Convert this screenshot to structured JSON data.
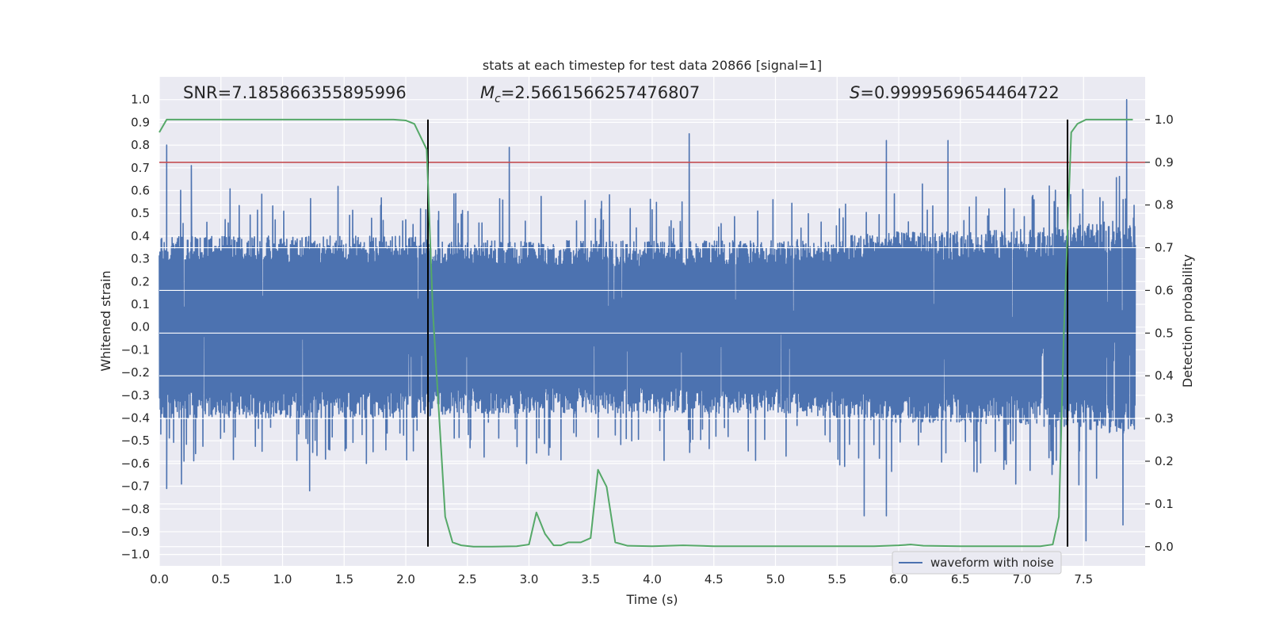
{
  "chart_data": {
    "type": "line",
    "title": "stats at each timestep for test data 20866 [signal=1]",
    "xlabel": "Time (s)",
    "ylabel": "Whitened strain",
    "y2label": "Detection probability",
    "xlim": [
      0.0,
      8.0
    ],
    "ylim": [
      -1.05,
      1.1
    ],
    "y2lim": [
      -0.045,
      1.1
    ],
    "x_ticks": [
      "0.0",
      "0.5",
      "1.0",
      "1.5",
      "2.0",
      "2.5",
      "3.0",
      "3.5",
      "4.0",
      "4.5",
      "5.0",
      "5.5",
      "6.0",
      "6.5",
      "7.0",
      "7.5"
    ],
    "y_ticks": [
      "−1.0",
      "−0.9",
      "−0.8",
      "−0.7",
      "−0.6",
      "−0.5",
      "−0.4",
      "−0.3",
      "−0.2",
      "−0.1",
      "0.0",
      "0.1",
      "0.2",
      "0.3",
      "0.4",
      "0.5",
      "0.6",
      "0.7",
      "0.8",
      "0.9",
      "1.0"
    ],
    "y2_ticks": [
      "0.0",
      "0.1",
      "0.2",
      "0.3",
      "0.4",
      "0.5",
      "0.6",
      "0.7",
      "0.8",
      "0.9",
      "1.0"
    ],
    "grid": true,
    "legend": {
      "location": "lower-right",
      "entries": [
        "waveform with noise"
      ]
    },
    "annotations": {
      "snr": "SNR=7.185866355895996",
      "mc_symbol": "M",
      "mc_sub": "c",
      "mc_value": "=2.5661566257476807",
      "s_symbol": "S",
      "s_value": "=0.9999569654464722"
    },
    "threshold": {
      "value": 0.9,
      "axis": "right",
      "color": "#c44e52"
    },
    "vlines": [
      2.18,
      7.37
    ],
    "colors": {
      "waveform": "#4c72b0",
      "probability": "#55a868",
      "threshold": "#c44e52",
      "vline": "#000000",
      "axes_bg": "#eaeaf2",
      "grid": "#ffffff"
    },
    "series": [
      {
        "name": "waveform with noise",
        "axis": "left",
        "style": "dense noisy waveform",
        "envelope": {
          "x": [
            0.0,
            1.0,
            2.0,
            2.5,
            3.0,
            4.0,
            5.0,
            5.5,
            6.0,
            6.5,
            7.0,
            7.5,
            7.9
          ],
          "amp": [
            0.4,
            0.4,
            0.4,
            0.38,
            0.38,
            0.38,
            0.38,
            0.4,
            0.42,
            0.42,
            0.43,
            0.45,
            0.48
          ]
        },
        "peaks": [
          {
            "x": 0.06,
            "y": 0.8
          },
          {
            "x": 0.06,
            "y": -0.71
          },
          {
            "x": 0.18,
            "y": -0.69
          },
          {
            "x": 0.26,
            "y": 0.71
          },
          {
            "x": 1.22,
            "y": -0.72
          },
          {
            "x": 2.12,
            "y": 0.52
          },
          {
            "x": 2.84,
            "y": 0.79
          },
          {
            "x": 2.98,
            "y": -0.6
          },
          {
            "x": 4.3,
            "y": 0.85
          },
          {
            "x": 5.72,
            "y": -0.83
          },
          {
            "x": 5.9,
            "y": 0.82
          },
          {
            "x": 5.9,
            "y": -0.83
          },
          {
            "x": 6.4,
            "y": 0.82
          },
          {
            "x": 6.95,
            "y": -0.69
          },
          {
            "x": 7.52,
            "y": -0.94
          },
          {
            "x": 7.82,
            "y": -0.87
          },
          {
            "x": 7.85,
            "y": 1.0
          }
        ]
      },
      {
        "name": "",
        "axis": "right",
        "x": [
          0.0,
          0.06,
          0.2,
          0.5,
          1.0,
          1.5,
          1.9,
          2.0,
          2.07,
          2.12,
          2.17,
          2.22,
          2.32,
          2.38,
          2.45,
          2.55,
          2.7,
          2.9,
          3.0,
          3.06,
          3.13,
          3.2,
          3.26,
          3.32,
          3.42,
          3.5,
          3.56,
          3.63,
          3.7,
          3.8,
          4.0,
          4.25,
          4.5,
          5.0,
          5.5,
          5.8,
          6.0,
          6.1,
          6.2,
          6.5,
          7.0,
          7.15,
          7.25,
          7.3,
          7.34,
          7.4,
          7.45,
          7.52,
          7.6,
          7.75,
          7.9
        ],
        "values": [
          0.97,
          1.0,
          1.0,
          1.0,
          1.0,
          1.0,
          1.0,
          0.998,
          0.99,
          0.96,
          0.93,
          0.55,
          0.07,
          0.01,
          0.003,
          0.0,
          0.0,
          0.001,
          0.005,
          0.08,
          0.03,
          0.003,
          0.003,
          0.01,
          0.01,
          0.02,
          0.18,
          0.14,
          0.01,
          0.002,
          0.001,
          0.003,
          0.001,
          0.001,
          0.001,
          0.001,
          0.003,
          0.005,
          0.002,
          0.001,
          0.001,
          0.001,
          0.005,
          0.07,
          0.5,
          0.97,
          0.99,
          1.0,
          1.0,
          1.0,
          1.0
        ]
      }
    ]
  }
}
